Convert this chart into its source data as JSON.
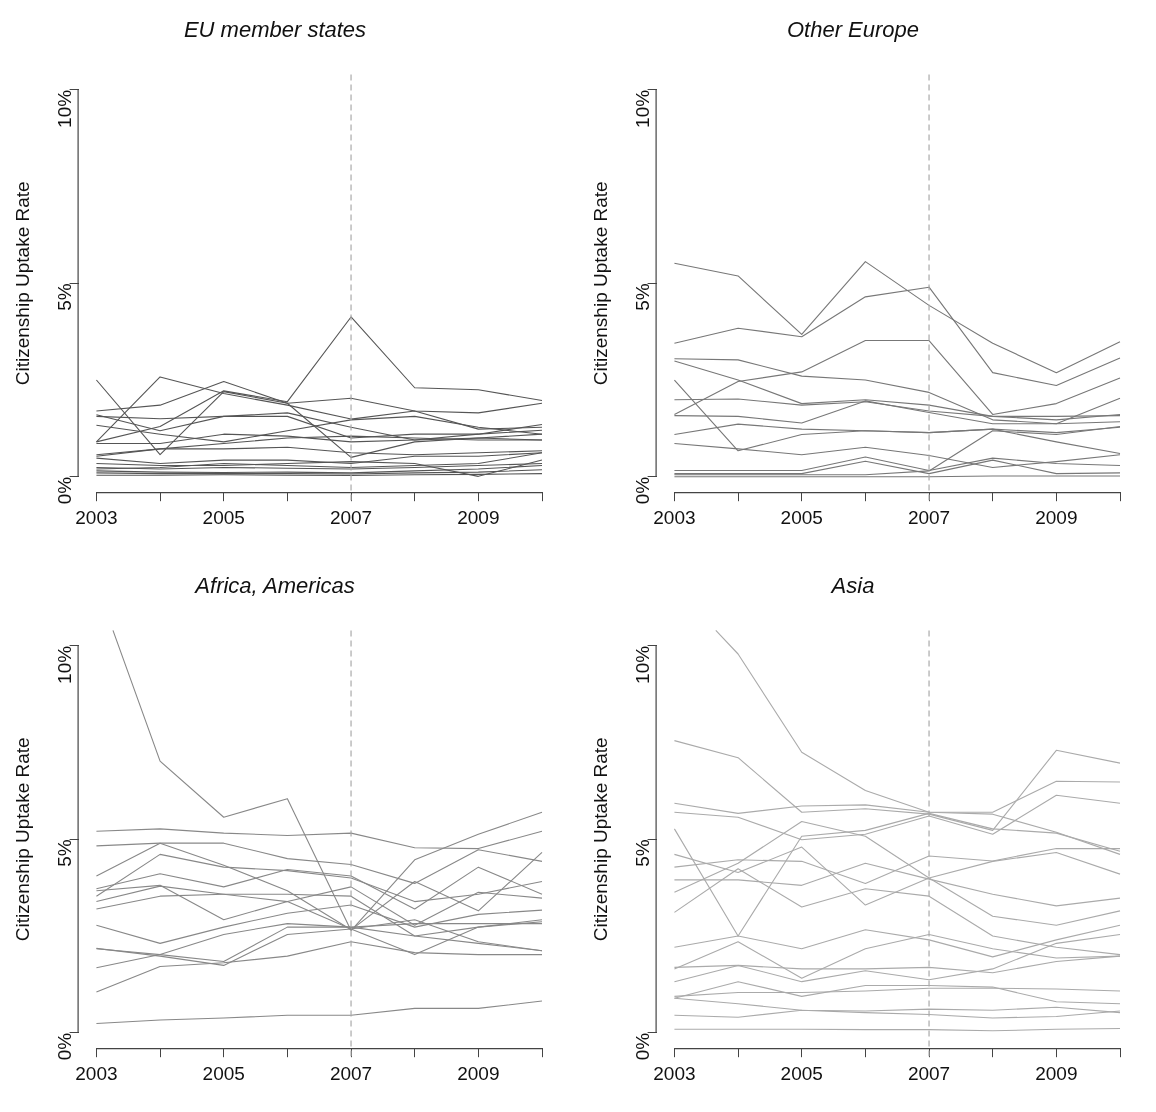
{
  "chart_data": [
    {
      "type": "line",
      "title": "EU member states",
      "ylabel": "Citizenship Uptake Rate",
      "x": [
        2003,
        2004,
        2005,
        2006,
        2007,
        2008,
        2009,
        2010
      ],
      "xlim": [
        2002.72,
        2010
      ],
      "ylim": [
        -0.4,
        10.4
      ],
      "xticks": [
        2003,
        {
          "value": 2004,
          "label": null
        },
        2005,
        {
          "value": 2006,
          "label": null
        },
        2007,
        {
          "value": 2008,
          "label": null
        },
        2009,
        {
          "value": 2010,
          "label": null
        }
      ],
      "yticks": [
        {
          "value": 0,
          "label": "0%"
        },
        {
          "value": 5,
          "label": "5%"
        },
        {
          "value": 10,
          "label": "10%"
        }
      ],
      "grid": false,
      "legend": false,
      "marker": "none",
      "line_style": "solid",
      "ref_lines": [
        {
          "axis": "x",
          "value": 2007,
          "color": "#aaaaaa",
          "line_style": "dashed"
        }
      ],
      "series": [
        {
          "color": "#555555",
          "values": [
            0.9,
            1.3,
            2.22,
            1.94,
            4.13,
            2.3,
            2.25,
            1.97
          ]
        },
        {
          "color": "#555555",
          "values": [
            2.5,
            0.57,
            2.2,
            1.9,
            0.5,
            0.9,
            1.0,
            1.1
          ]
        },
        {
          "color": "#555555",
          "values": [
            0.9,
            2.58,
            2.15,
            1.85,
            1.49,
            1.7,
            1.23,
            1.28
          ]
        },
        {
          "color": "#555555",
          "values": [
            1.7,
            1.85,
            2.46,
            1.9,
            2.03,
            1.7,
            1.65,
            1.9
          ]
        },
        {
          "color": "#555555",
          "values": [
            1.6,
            1.19,
            1.56,
            1.56,
            1.0,
            1.1,
            1.1,
            1.35
          ]
        },
        {
          "color": "#555555",
          "values": [
            1.33,
            1.1,
            0.9,
            1.19,
            1.47,
            1.56,
            1.28,
            1.1
          ]
        },
        {
          "color": "#555555",
          "values": [
            0.86,
            0.86,
            1.1,
            1.05,
            0.9,
            0.95,
            1.0,
            0.95
          ]
        },
        {
          "color": "#555555",
          "values": [
            0.57,
            0.72,
            0.72,
            0.76,
            0.62,
            0.57,
            0.62,
            0.67
          ]
        },
        {
          "color": "#555555",
          "values": [
            0.48,
            0.34,
            0.43,
            0.43,
            0.34,
            0.53,
            0.53,
            0.62
          ]
        },
        {
          "color": "#555555",
          "values": [
            0.34,
            0.29,
            0.29,
            0.34,
            0.39,
            0.34,
            0.01,
            0.43
          ]
        },
        {
          "color": "#555555",
          "values": [
            0.24,
            0.2,
            0.24,
            0.22,
            0.2,
            0.24,
            0.29,
            0.34
          ]
        },
        {
          "color": "#555555",
          "values": [
            0.15,
            0.12,
            0.11,
            0.12,
            0.1,
            0.15,
            0.2,
            0.29
          ]
        },
        {
          "color": "#555555",
          "values": [
            0.1,
            0.08,
            0.08,
            0.08,
            0.07,
            0.1,
            0.12,
            0.18
          ]
        },
        {
          "color": "#555555",
          "values": [
            0.2,
            0.24,
            0.34,
            0.29,
            0.24,
            0.29,
            0.34,
            0.62
          ]
        },
        {
          "color": "#555555",
          "values": [
            0.04,
            0.04,
            0.05,
            0.04,
            0.03,
            0.05,
            0.06,
            0.08
          ]
        },
        {
          "color": "#555555",
          "values": [
            0.53,
            0.72,
            0.86,
            1.0,
            1.05,
            1.0,
            0.95,
            0.95
          ]
        },
        {
          "color": "#555555",
          "values": [
            1.56,
            1.5,
            1.56,
            1.65,
            1.28,
            0.95,
            1.1,
            1.2
          ]
        }
      ]
    },
    {
      "type": "line",
      "title": "Other Europe",
      "ylabel": "Citizenship Uptake Rate",
      "x": [
        2003,
        2004,
        2005,
        2006,
        2007,
        2008,
        2009,
        2010
      ],
      "xlim": [
        2002.72,
        2010
      ],
      "ylim": [
        -0.4,
        10.4
      ],
      "xticks": [
        2003,
        {
          "value": 2004,
          "label": null
        },
        2005,
        {
          "value": 2006,
          "label": null
        },
        2007,
        {
          "value": 2008,
          "label": null
        },
        2009,
        {
          "value": 2010,
          "label": null
        }
      ],
      "yticks": [
        {
          "value": 0,
          "label": "0%"
        },
        {
          "value": 5,
          "label": "5%"
        },
        {
          "value": 10,
          "label": "10%"
        }
      ],
      "grid": false,
      "legend": false,
      "marker": "none",
      "line_style": "solid",
      "ref_lines": [
        {
          "axis": "x",
          "value": 2007,
          "color": "#aaaaaa",
          "line_style": "dashed"
        }
      ],
      "series": [
        {
          "color": "#777777",
          "values": [
            5.52,
            5.19,
            3.68,
            5.56,
            4.43,
            3.45,
            2.69,
            3.49
          ]
        },
        {
          "color": "#777777",
          "values": [
            3.45,
            3.84,
            3.62,
            4.65,
            4.9,
            2.69,
            2.36,
            3.07
          ]
        },
        {
          "color": "#777777",
          "values": [
            3.05,
            3.02,
            2.6,
            2.5,
            2.18,
            1.47,
            1.37,
            2.03
          ]
        },
        {
          "color": "#777777",
          "values": [
            2.99,
            2.5,
            1.89,
            1.99,
            1.85,
            1.56,
            1.47,
            1.61
          ]
        },
        {
          "color": "#777777",
          "values": [
            1.61,
            2.46,
            2.71,
            3.52,
            3.52,
            1.61,
            1.89,
            2.55
          ]
        },
        {
          "color": "#777777",
          "values": [
            2.5,
            0.67,
            1.09,
            1.19,
            1.14,
            1.23,
            0.9,
            0.6
          ]
        },
        {
          "color": "#777777",
          "values": [
            1.99,
            2.01,
            1.85,
            1.94,
            1.7,
            1.56,
            1.56,
            1.58
          ]
        },
        {
          "color": "#777777",
          "values": [
            1.58,
            1.56,
            1.39,
            1.96,
            1.66,
            1.37,
            1.37,
            1.42
          ]
        },
        {
          "color": "#777777",
          "values": [
            1.09,
            1.36,
            1.23,
            1.19,
            1.14,
            1.23,
            1.14,
            1.28
          ]
        },
        {
          "color": "#777777",
          "values": [
            0.86,
            0.72,
            0.57,
            0.76,
            0.55,
            0.24,
            0.39,
            0.57
          ]
        },
        {
          "color": "#777777",
          "values": [
            0.16,
            0.16,
            0.16,
            0.51,
            0.16,
            0.48,
            0.34,
            0.29
          ]
        },
        {
          "color": "#777777",
          "values": [
            0.08,
            0.08,
            0.08,
            0.4,
            0.08,
            0.43,
            0.08,
            0.1
          ]
        },
        {
          "color": "#777777",
          "values": [
            0.05,
            0.05,
            0.05,
            0.05,
            0.15,
            1.19,
            1.09,
            1.3
          ]
        },
        {
          "color": "#777777",
          "values": [
            0,
            0,
            0,
            0,
            0,
            0.02,
            0.02,
            0.02
          ]
        }
      ]
    },
    {
      "type": "line",
      "title": "Africa, Americas",
      "ylabel": "Citizenship Uptake Rate",
      "x": [
        2003,
        2004,
        2005,
        2006,
        2007,
        2008,
        2009,
        2010
      ],
      "xlim": [
        2002.72,
        2010
      ],
      "ylim": [
        -0.4,
        10.4
      ],
      "xticks": [
        2003,
        {
          "value": 2004,
          "label": null
        },
        2005,
        {
          "value": 2006,
          "label": null
        },
        2007,
        {
          "value": 2008,
          "label": null
        },
        2009,
        {
          "value": 2010,
          "label": null
        }
      ],
      "yticks": [
        {
          "value": 0,
          "label": "0%"
        },
        {
          "value": 5,
          "label": "5%"
        },
        {
          "value": 10,
          "label": "10%"
        }
      ],
      "grid": false,
      "legend": false,
      "marker": "none",
      "line_style": "solid",
      "ref_lines": [
        {
          "axis": "x",
          "value": 2007,
          "color": "#aaaaaa",
          "line_style": "dashed"
        }
      ],
      "series": [
        {
          "color": "#888888",
          "x": [
            2003.26,
            2004,
            2005,
            2006,
            2007,
            2008,
            2009,
            2010
          ],
          "values": [
            10.4,
            7.02,
            5.57,
            6.05,
            2.64,
            4.47,
            5.13,
            5.7
          ]
        },
        {
          "color": "#888888",
          "values": [
            5.21,
            5.27,
            5.16,
            5.1,
            5.16,
            4.78,
            4.76,
            5.21
          ]
        },
        {
          "color": "#888888",
          "values": [
            4.83,
            4.9,
            4.9,
            4.5,
            4.35,
            3.86,
            4.73,
            4.43
          ]
        },
        {
          "color": "#888888",
          "values": [
            4.05,
            4.9,
            4.33,
            3.67,
            2.66,
            3.91,
            3.15,
            4.66
          ]
        },
        {
          "color": "#888888",
          "values": [
            3.53,
            4.61,
            4.28,
            4.19,
            4.0,
            3.39,
            3.58,
            3.91
          ]
        },
        {
          "color": "#888888",
          "values": [
            3.72,
            4.11,
            3.77,
            4.22,
            4.05,
            3.2,
            4.28,
            3.58
          ]
        },
        {
          "color": "#888888",
          "values": [
            3.67,
            3.81,
            2.92,
            3.39,
            3.77,
            2.78,
            3.63,
            3.48
          ]
        },
        {
          "color": "#888888",
          "values": [
            3.39,
            3.79,
            3.58,
            3.39,
            2.68,
            2.92,
            2.35,
            2.12
          ]
        },
        {
          "color": "#888888",
          "values": [
            3.2,
            3.53,
            3.58,
            3.58,
            3.53,
            2.5,
            2.73,
            2.87
          ]
        },
        {
          "color": "#888888",
          "values": [
            2.78,
            2.31,
            2.73,
            3.09,
            3.3,
            2.73,
            3.06,
            3.17
          ]
        },
        {
          "color": "#888888",
          "values": [
            2.18,
            1.98,
            1.74,
            2.54,
            2.68,
            2.02,
            2.73,
            2.92
          ]
        },
        {
          "color": "#888888",
          "values": [
            1.68,
            2.02,
            2.54,
            2.82,
            2.73,
            2.82,
            2.82,
            2.82
          ]
        },
        {
          "color": "#888888",
          "values": [
            1.05,
            1.71,
            1.81,
            1.98,
            2.35,
            2.07,
            2.02,
            2.02
          ]
        },
        {
          "color": "#888888",
          "values": [
            2.17,
            2.02,
            1.84,
            2.73,
            2.73,
            2.5,
            2.31,
            2.12
          ]
        },
        {
          "color": "#888888",
          "values": [
            0.24,
            0.33,
            0.38,
            0.45,
            0.45,
            0.63,
            0.63,
            0.82
          ]
        }
      ]
    },
    {
      "type": "line",
      "title": "Asia",
      "ylabel": "Citizenship Uptake Rate",
      "x": [
        2003,
        2004,
        2005,
        2006,
        2007,
        2008,
        2009,
        2010
      ],
      "xlim": [
        2002.72,
        2010
      ],
      "ylim": [
        -0.4,
        10.4
      ],
      "xticks": [
        2003,
        {
          "value": 2004,
          "label": null
        },
        2005,
        {
          "value": 2006,
          "label": null
        },
        2007,
        {
          "value": 2008,
          "label": null
        },
        2009,
        {
          "value": 2010,
          "label": null
        }
      ],
      "yticks": [
        {
          "value": 0,
          "label": "0%"
        },
        {
          "value": 5,
          "label": "5%"
        },
        {
          "value": 10,
          "label": "10%"
        }
      ],
      "grid": false,
      "legend": false,
      "marker": "none",
      "line_style": "solid",
      "ref_lines": [
        {
          "axis": "x",
          "value": 2007,
          "color": "#aaaaaa",
          "line_style": "dashed"
        }
      ],
      "series": [
        {
          "color": "#aaaaaa",
          "x": [
            2003.65,
            2004,
            2005,
            2006,
            2007,
            2008,
            2009,
            2010
          ],
          "values": [
            10.4,
            9.79,
            7.25,
            6.26,
            5.7,
            5.65,
            5.18,
            4.61
          ]
        },
        {
          "color": "#aaaaaa",
          "values": [
            7.55,
            7.11,
            5.7,
            5.79,
            5.65,
            5.23,
            7.3,
            6.97
          ]
        },
        {
          "color": "#aaaaaa",
          "values": [
            5.93,
            5.67,
            5.86,
            5.89,
            5.7,
            5.7,
            6.5,
            6.48
          ]
        },
        {
          "color": "#aaaaaa",
          "values": [
            5.7,
            5.57,
            4.99,
            5.13,
            5.6,
            5.13,
            6.14,
            5.93
          ]
        },
        {
          "color": "#aaaaaa",
          "values": [
            5.27,
            2.5,
            5.08,
            5.23,
            5.67,
            5.27,
            5.16,
            4.69
          ]
        },
        {
          "color": "#aaaaaa",
          "values": [
            4.61,
            4.14,
            4.8,
            3.3,
            4.0,
            4.43,
            4.66,
            4.1
          ]
        },
        {
          "color": "#aaaaaa",
          "values": [
            4.28,
            4.47,
            4.43,
            3.86,
            4.57,
            4.44,
            4.76,
            4.76
          ]
        },
        {
          "color": "#aaaaaa",
          "values": [
            3.95,
            3.95,
            3.81,
            4.38,
            3.97,
            3.58,
            3.28,
            3.48
          ]
        },
        {
          "color": "#aaaaaa",
          "values": [
            3.63,
            4.38,
            5.46,
            5.08,
            4.0,
            3.01,
            2.78,
            3.15
          ]
        },
        {
          "color": "#aaaaaa",
          "values": [
            3.11,
            4.24,
            3.25,
            3.72,
            3.53,
            2.5,
            2.21,
            2.02
          ]
        },
        {
          "color": "#aaaaaa",
          "values": [
            2.21,
            2.5,
            2.17,
            2.66,
            2.4,
            1.96,
            2.4,
            2.78
          ]
        },
        {
          "color": "#aaaaaa",
          "values": [
            1.65,
            2.35,
            1.41,
            2.17,
            2.54,
            2.17,
            1.93,
            1.98
          ]
        },
        {
          "color": "#aaaaaa",
          "values": [
            1.69,
            1.74,
            1.32,
            1.6,
            1.37,
            1.65,
            2.31,
            2.54
          ]
        },
        {
          "color": "#aaaaaa",
          "values": [
            1.32,
            1.74,
            1.65,
            1.65,
            1.69,
            1.55,
            1.84,
            1.98
          ]
        },
        {
          "color": "#aaaaaa",
          "values": [
            0.89,
            1.32,
            0.94,
            1.22,
            1.22,
            1.18,
            0.8,
            0.75
          ]
        },
        {
          "color": "#aaaaaa",
          "values": [
            0.94,
            1.04,
            1.04,
            1.08,
            1.15,
            1.15,
            1.13,
            1.08
          ]
        },
        {
          "color": "#aaaaaa",
          "values": [
            0.89,
            0.75,
            0.58,
            0.56,
            0.61,
            0.58,
            0.66,
            0.52
          ]
        },
        {
          "color": "#aaaaaa",
          "values": [
            0.45,
            0.4,
            0.58,
            0.52,
            0.47,
            0.38,
            0.42,
            0.56
          ]
        },
        {
          "color": "#aaaaaa",
          "values": [
            0.09,
            0.09,
            0.09,
            0.08,
            0.08,
            0.05,
            0.09,
            0.11
          ]
        }
      ]
    }
  ]
}
